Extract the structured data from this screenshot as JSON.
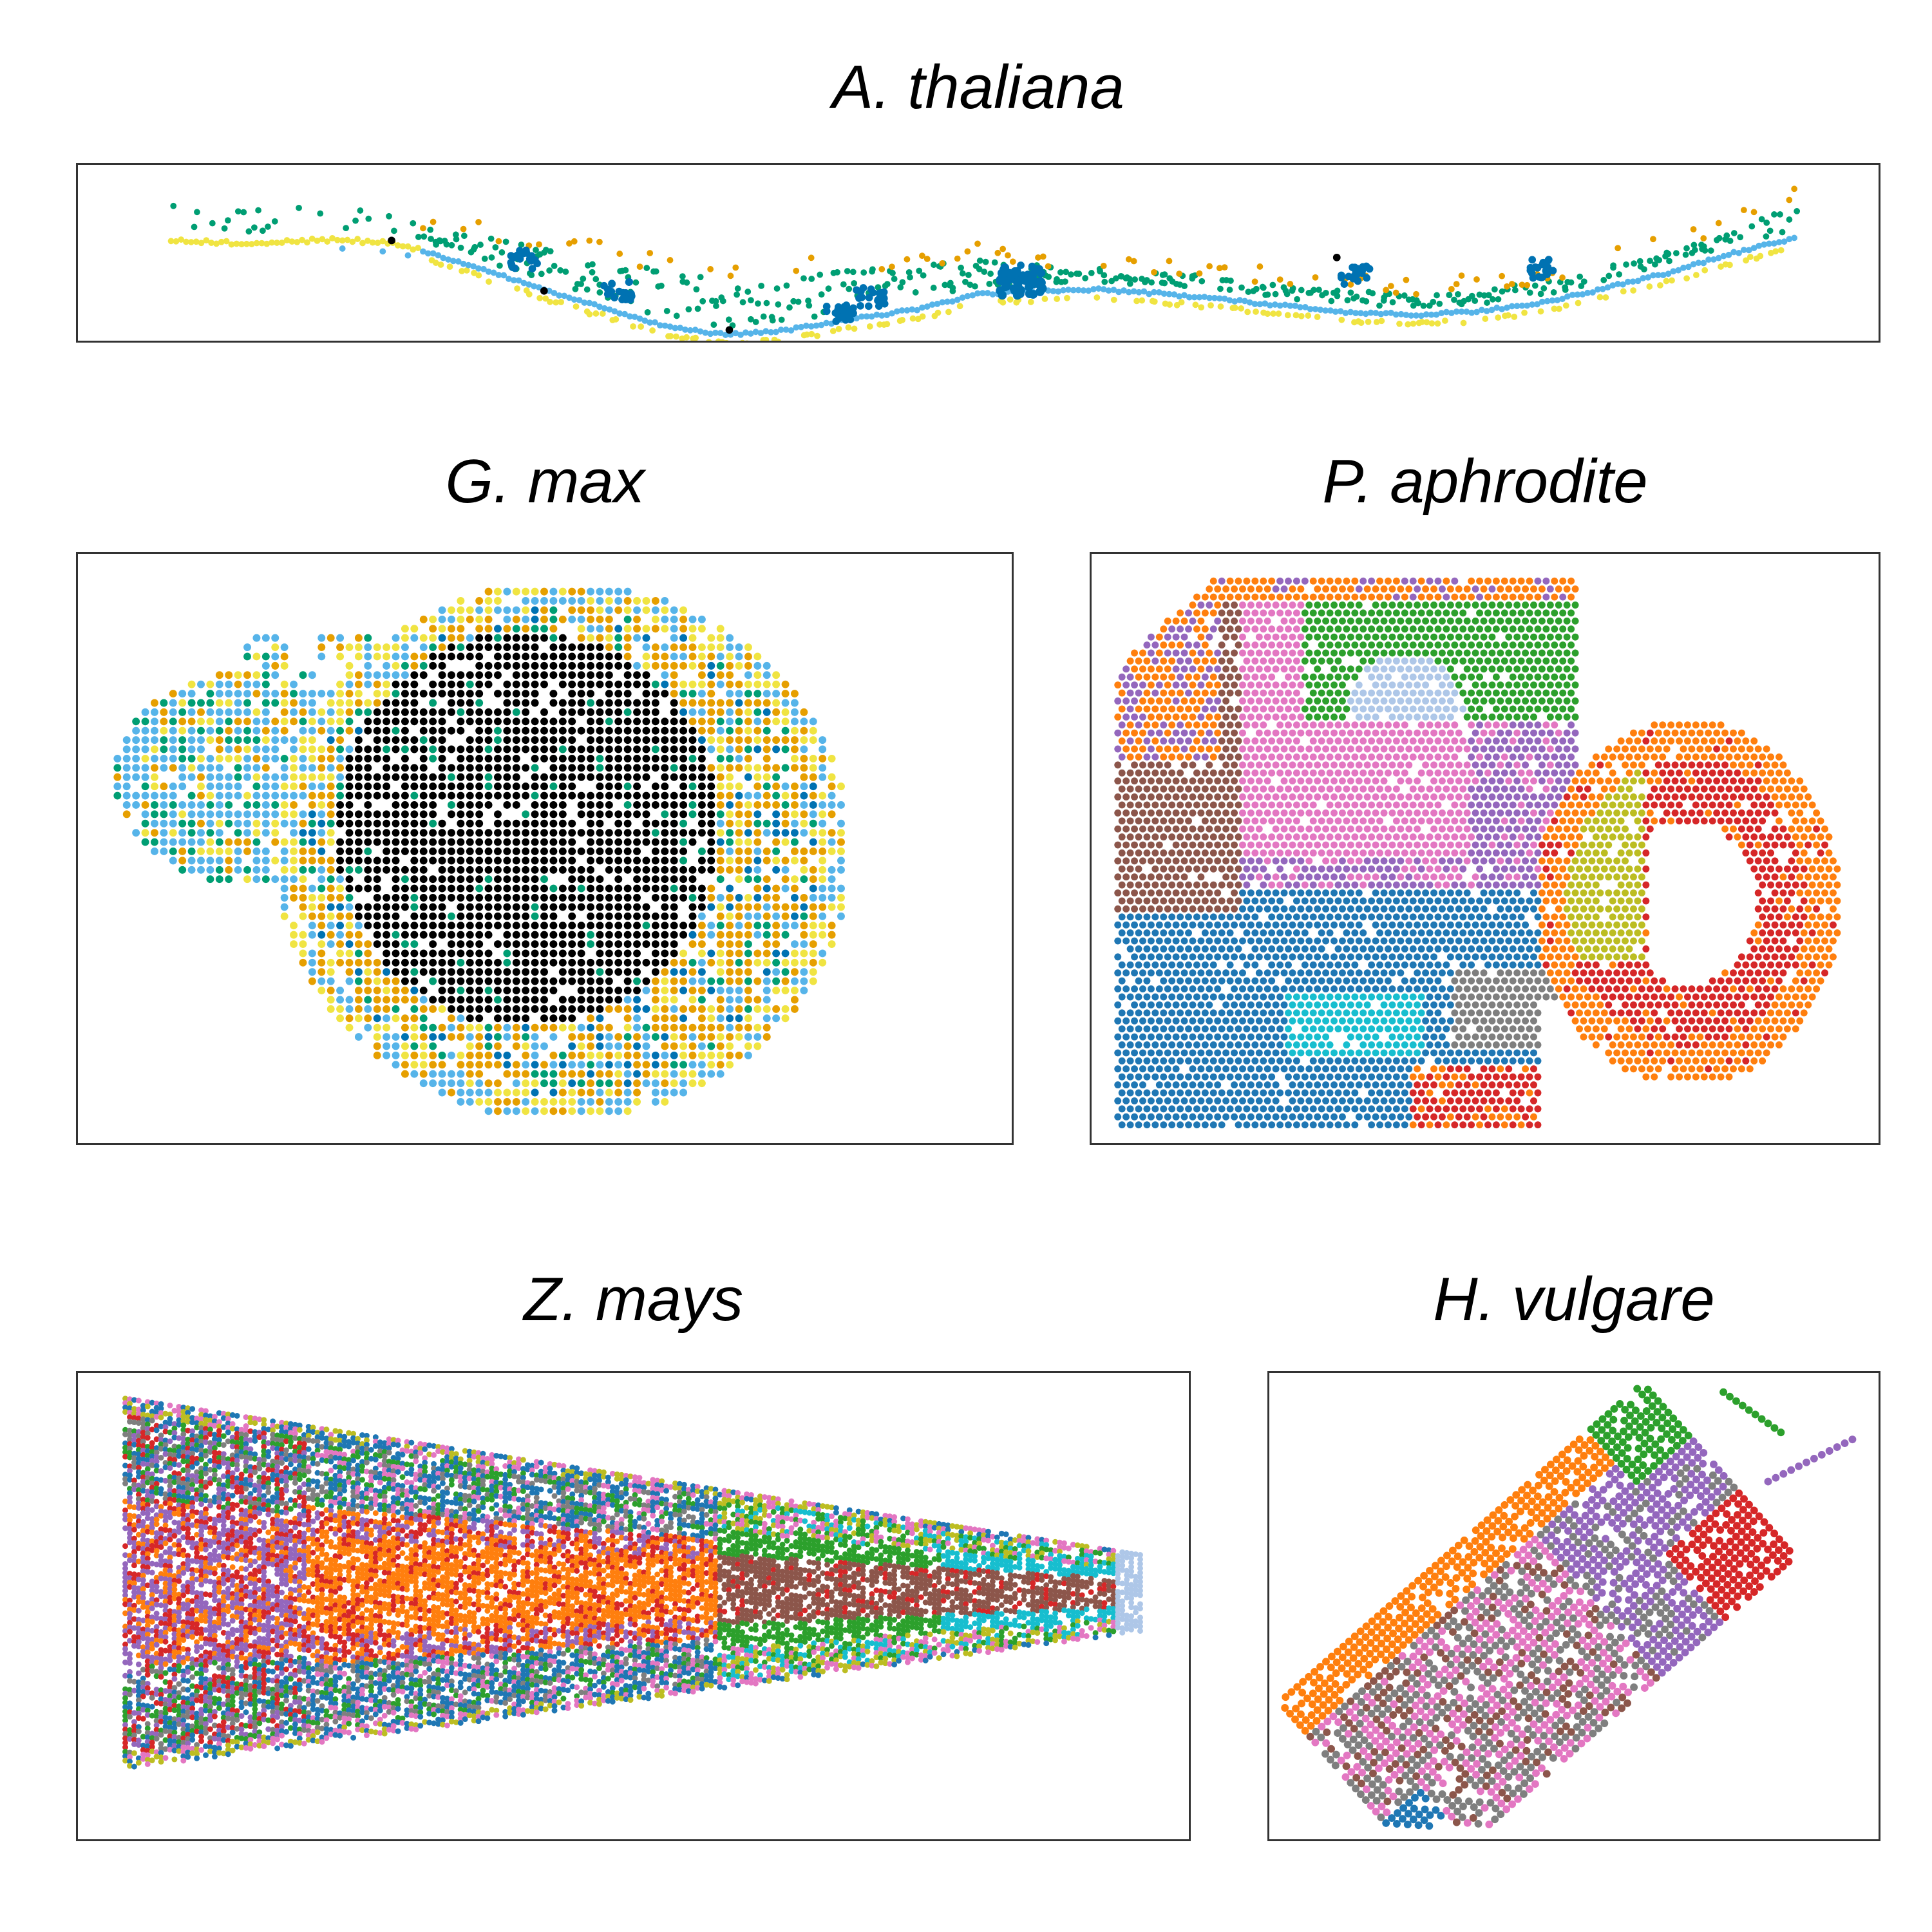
{
  "chart_data": [
    {
      "type": "scatter",
      "title": "A. thaliana",
      "grid": false,
      "legend": "none",
      "axes_visible": false,
      "palette": {
        "yellow": "#f0e442",
        "teal": "#009e73",
        "blue": "#0072b2",
        "skyblue": "#56b4e9",
        "orange": "#e69f00",
        "black": "#000000"
      }
    },
    {
      "type": "scatter",
      "title": "G. max",
      "grid": false,
      "legend": "none",
      "axes_visible": false,
      "palette": {
        "black": "#000000",
        "orange": "#e69f00",
        "skyblue": "#56b4e9",
        "yellow": "#f0e442",
        "teal": "#009e73",
        "blue": "#0072b2"
      }
    },
    {
      "type": "scatter",
      "title": "P. aphrodite",
      "grid": false,
      "legend": "none",
      "axes_visible": false,
      "palette": {
        "orange": "#ff7f0e",
        "green": "#2ca02c",
        "purple": "#9467bd",
        "pink": "#e377c2",
        "lightblue": "#aec7e8",
        "brown": "#8c564b",
        "blue": "#1f77b4",
        "cyan": "#17becf",
        "gray": "#7f7f7f",
        "olive": "#bcbd22",
        "red": "#d62728"
      }
    },
    {
      "type": "scatter",
      "title": "Z. mays",
      "grid": false,
      "legend": "none",
      "axes_visible": false,
      "palette": {
        "blue": "#1f77b4",
        "green": "#2ca02c",
        "red": "#d62728",
        "purple": "#9467bd",
        "orange": "#ff7f0e",
        "gray": "#7f7f7f",
        "pink": "#e377c2",
        "olive": "#bcbd22",
        "brown": "#8c564b",
        "cyan": "#17becf",
        "lightblue": "#aec7e8"
      }
    },
    {
      "type": "scatter",
      "title": "H. vulgare",
      "grid": false,
      "legend": "none",
      "axes_visible": false,
      "palette": {
        "orange": "#ff7f0e",
        "pink": "#e377c2",
        "gray": "#7f7f7f",
        "brown": "#8c564b",
        "purple": "#9467bd",
        "green": "#2ca02c",
        "red": "#d62728",
        "blue": "#1f77b4"
      }
    }
  ]
}
